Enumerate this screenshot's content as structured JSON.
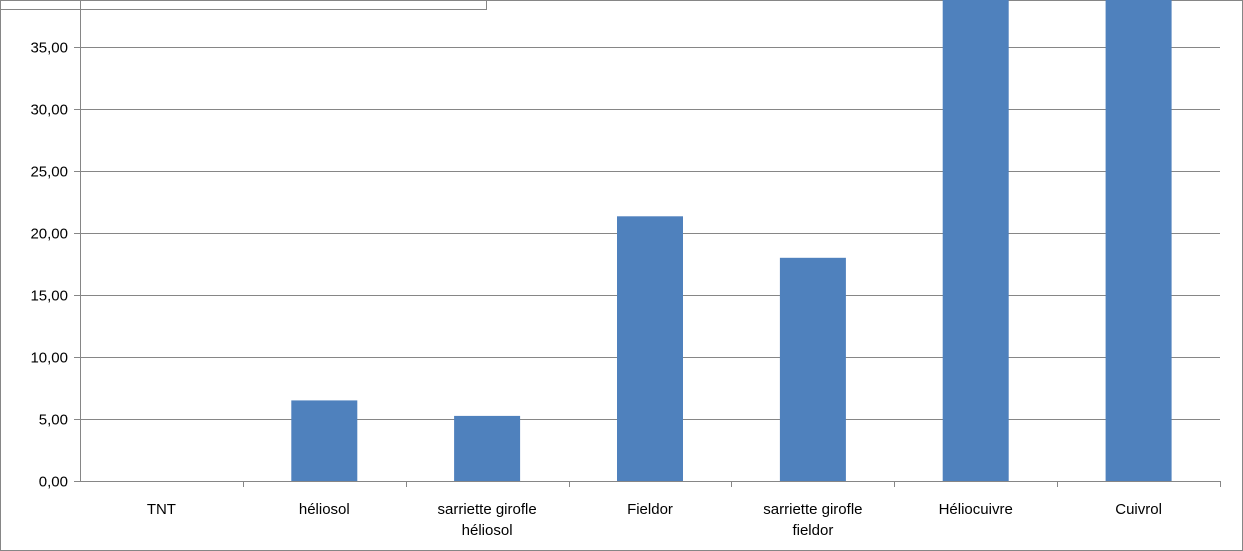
{
  "chart_data": {
    "type": "bar",
    "categories": [
      [
        "TNT"
      ],
      [
        "héliosol"
      ],
      [
        "sarriette girofle",
        "héliosol"
      ],
      [
        "Fieldor"
      ],
      [
        "sarriette girofle",
        "fieldor"
      ],
      [
        "Héliocuivre"
      ],
      [
        "Cuivrol"
      ]
    ],
    "values": [
      0,
      6.5,
      5.25,
      21.35,
      18.0,
      39.0,
      39.0
    ],
    "ylim": [
      0,
      39
    ],
    "yticks": [
      "0,00",
      "5,00",
      "10,00",
      "15,00",
      "20,00",
      "25,00",
      "30,00",
      "35,00"
    ],
    "ytick_values": [
      0,
      5,
      10,
      15,
      20,
      25,
      30,
      35
    ],
    "grid": true,
    "bar_color": "#4f81bd",
    "title": "",
    "xlabel": "",
    "ylabel": ""
  }
}
